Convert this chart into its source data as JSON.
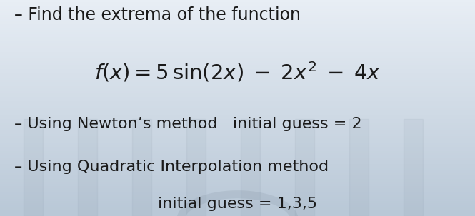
{
  "bg_color_top": "#e8eef5",
  "bg_color_bottom": "#b8c8d8",
  "text_color": "#1a1a1a",
  "line1": "– Find the extrema of the function",
  "line2_latex": "$f(x)= 5\\,\\mathrm{sin}(2x)\\;-\\;2x^2\\;-\\;4x$",
  "line3": "– Using Newton’s method   initial guess = 2",
  "line4": "– Using Quadratic Interpolation method",
  "line5": "initial guess = 1,3,5",
  "line1_fontsize": 17,
  "line2_fontsize": 21,
  "line3_fontsize": 16,
  "line4_fontsize": 16,
  "line5_fontsize": 16,
  "figsize": [
    6.65,
    3.03
  ],
  "dpi": 100
}
